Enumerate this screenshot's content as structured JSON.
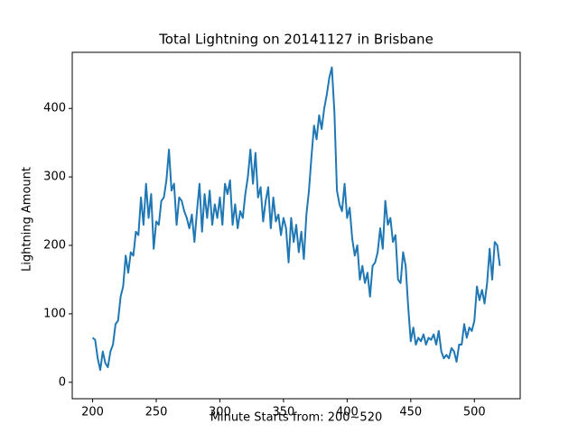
{
  "chart_data": {
    "type": "line",
    "title": "Total Lightning on 20141127 in Brisbane",
    "x_label": "Minute Starts from: 200~520",
    "y_label": "Lightning Amount",
    "x": [
      200,
      202,
      204,
      206,
      208,
      210,
      212,
      214,
      216,
      218,
      220,
      222,
      224,
      226,
      228,
      230,
      232,
      234,
      236,
      238,
      240,
      242,
      244,
      246,
      248,
      250,
      252,
      254,
      256,
      258,
      260,
      262,
      264,
      266,
      268,
      270,
      272,
      274,
      276,
      278,
      280,
      282,
      284,
      286,
      288,
      290,
      292,
      294,
      296,
      298,
      300,
      302,
      304,
      306,
      308,
      310,
      312,
      314,
      316,
      318,
      320,
      322,
      324,
      326,
      328,
      330,
      332,
      334,
      336,
      338,
      340,
      342,
      344,
      346,
      348,
      350,
      352,
      354,
      356,
      358,
      360,
      362,
      364,
      366,
      368,
      370,
      372,
      374,
      376,
      378,
      380,
      382,
      384,
      386,
      388,
      390,
      392,
      394,
      396,
      398,
      400,
      402,
      404,
      406,
      408,
      410,
      412,
      414,
      416,
      418,
      420,
      422,
      424,
      426,
      428,
      430,
      432,
      434,
      436,
      438,
      440,
      442,
      444,
      446,
      448,
      450,
      452,
      454,
      456,
      458,
      460,
      462,
      464,
      466,
      468,
      470,
      472,
      474,
      476,
      478,
      480,
      482,
      484,
      486,
      488,
      490,
      492,
      494,
      496,
      498,
      500,
      502,
      504,
      506,
      508,
      510,
      512,
      514,
      516,
      518,
      520
    ],
    "series": [
      {
        "name": "Lightning",
        "color": "#1f77b4",
        "values": [
          65,
          62,
          35,
          18,
          45,
          28,
          22,
          45,
          55,
          85,
          90,
          125,
          140,
          185,
          160,
          190,
          185,
          220,
          215,
          270,
          230,
          290,
          240,
          275,
          195,
          235,
          230,
          265,
          270,
          295,
          340,
          280,
          290,
          230,
          270,
          265,
          250,
          240,
          225,
          245,
          205,
          250,
          290,
          220,
          275,
          240,
          280,
          230,
          260,
          240,
          270,
          230,
          290,
          275,
          295,
          230,
          260,
          225,
          250,
          240,
          275,
          300,
          340,
          290,
          335,
          270,
          285,
          235,
          265,
          285,
          225,
          270,
          235,
          245,
          215,
          240,
          225,
          175,
          240,
          205,
          230,
          190,
          220,
          180,
          245,
          280,
          330,
          375,
          355,
          390,
          370,
          400,
          420,
          445,
          460,
          395,
          280,
          260,
          250,
          290,
          240,
          255,
          210,
          185,
          200,
          150,
          170,
          145,
          160,
          125,
          170,
          175,
          190,
          225,
          195,
          265,
          230,
          240,
          205,
          215,
          150,
          145,
          190,
          170,
          110,
          60,
          80,
          55,
          65,
          60,
          70,
          55,
          65,
          62,
          70,
          55,
          75,
          45,
          35,
          40,
          35,
          50,
          45,
          30,
          55,
          55,
          85,
          65,
          80,
          75,
          90,
          140,
          120,
          135,
          115,
          145,
          195,
          150,
          205,
          200,
          170
        ]
      }
    ],
    "xlim": [
      184,
      536
    ],
    "ylim": [
      -24,
      482
    ],
    "xticks": [
      200,
      250,
      300,
      350,
      400,
      450,
      500
    ],
    "yticks": [
      0,
      100,
      200,
      300,
      400
    ]
  }
}
